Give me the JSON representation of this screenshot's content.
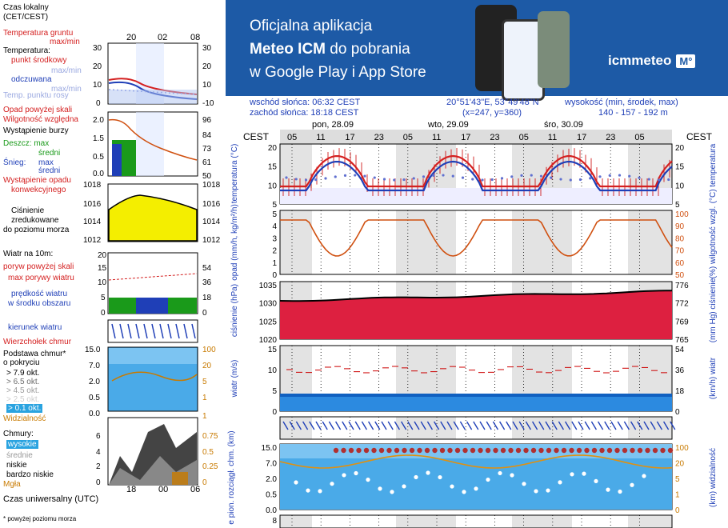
{
  "legend": {
    "time_local": "Czas lokalny",
    "time_local2": "(CET/CEST)",
    "soil_temp": "Temperatura gruntu",
    "soil_temp2": "max/min",
    "temperature": "Temperatura:",
    "mid_point": "punkt środkowy",
    "max_min": "max/min",
    "feels": "odczuwana",
    "max_min2": "max/min",
    "dew": "Temp. punktu rosy",
    "precip_above": "Opad powyżej skali",
    "humidity": "Wilgotność względna",
    "storm": "Wystąpienie burzy",
    "rain": "Deszcz: max",
    "rain_avg": "średni",
    "snow": "Śnieg:",
    "snow_max": "max",
    "snow_avg": "średni",
    "convective": "Wystąpienie opadu",
    "convective2": "konwekcyjnego",
    "pressure": "Ciśnienie",
    "pressure2": "zredukowane",
    "pressure3": "do poziomu morza",
    "wind": "Wiatr na 10m:",
    "gusts_above": "poryw powyżej skali",
    "max_gust": "max porywy wiatru",
    "wind_speed": "prędkość wiatru",
    "wind_area": "w środku obszaru",
    "wind_dir": "kierunek wiatru",
    "cloud_top": "Wierzchołek chmur",
    "cloud_base": "Podstawa chmur*",
    "by_cover": "o pokryciu",
    "okt79": "> 7.9 okt.",
    "okt65": "> 6.5 okt.",
    "okt45": "> 4.5 okt.",
    "okt25": "> 2.5 okt.",
    "okt01": "> 0.1 okt.",
    "visibility": "Widzialność",
    "clouds": "Chmury:",
    "high": "wysokie",
    "mid": "średnie",
    "low": "niskie",
    "very_low": "bardzo niskie",
    "fog": "Mgła",
    "utc": "Czas uniwersalny (UTC)",
    "footnote": "* powyżej poziomu morza",
    "hours_top": [
      "20",
      "02",
      "08"
    ],
    "hours_bottom": [
      "18",
      "00",
      "06"
    ]
  },
  "banner": {
    "line1": "Oficjalna aplikacja",
    "line2a": "Meteo ICM",
    "line2b": " do pobrania",
    "line3": "w Google Play i App Store",
    "logo": "icmmeteo",
    "logo_box": "M°"
  },
  "info": {
    "sunrise": "wschód słońca: 06:32 CEST",
    "sunset": "zachód słońca: 18:18 CEST",
    "coords": "20°51'43\"E, 53°49'48\"N",
    "grid": "(x=247,  y=360)",
    "height_label": "wysokość (min, środek, max)",
    "height_values": "140 - 157 - 192 m"
  },
  "chart": {
    "tz": "CEST",
    "days": [
      "pon, 28.09",
      "wto, 29.09",
      "śro, 30.09"
    ],
    "hours": [
      "05",
      "11",
      "17",
      "23",
      "05",
      "11",
      "17",
      "23",
      "05",
      "11",
      "17",
      "23",
      "05"
    ],
    "temp_ticks": [
      "20",
      "15",
      "10",
      "5"
    ],
    "temp_label_l": "temperatura (°C)",
    "temp_label_r": "(°C) temperatura",
    "precip_ticks": [
      "5",
      "4",
      "3",
      "2",
      "1",
      "0"
    ],
    "hum_ticks": [
      "100",
      "90",
      "80",
      "70",
      "60",
      "50"
    ],
    "precip_label": "opad (mm/h, kg/m²/h)",
    "hum_label": "(%) wilgotność wzgl.",
    "press_ticks": [
      "1035",
      "1030",
      "1025",
      "1020"
    ],
    "press_ticks_r": [
      "776",
      "772",
      "769",
      "765"
    ],
    "press_label": "ciśnienie (hPa)",
    "press_label_r": "(mm Hg) ciśnienie",
    "wind_ticks": [
      "15",
      "10",
      "5",
      "0"
    ],
    "wind_ticks_r": [
      "54",
      "36",
      "18",
      "0"
    ],
    "wind_label": "wiatr (m/s)",
    "wind_label_r": "(km/h) wiatr",
    "cloud_ticks": [
      "15.0",
      "7.0",
      "2.0",
      "0.5",
      "0.0"
    ],
    "vis_ticks": [
      "100",
      "20",
      "5",
      "1",
      "0"
    ],
    "cloud_label": "e pion. rozciągł. chm. (km)",
    "vis_label": "(km) widzialność",
    "bottom_tick": "8"
  },
  "colors": {
    "banner": "#1d5aa6",
    "temp": "#d42020",
    "temp_feels": "#1f3fb7",
    "pressure_fill": "#dd2040",
    "humidity": "#d05010",
    "wind_fill": "#1060c0",
    "cloud_bg": "#4aaae8"
  }
}
